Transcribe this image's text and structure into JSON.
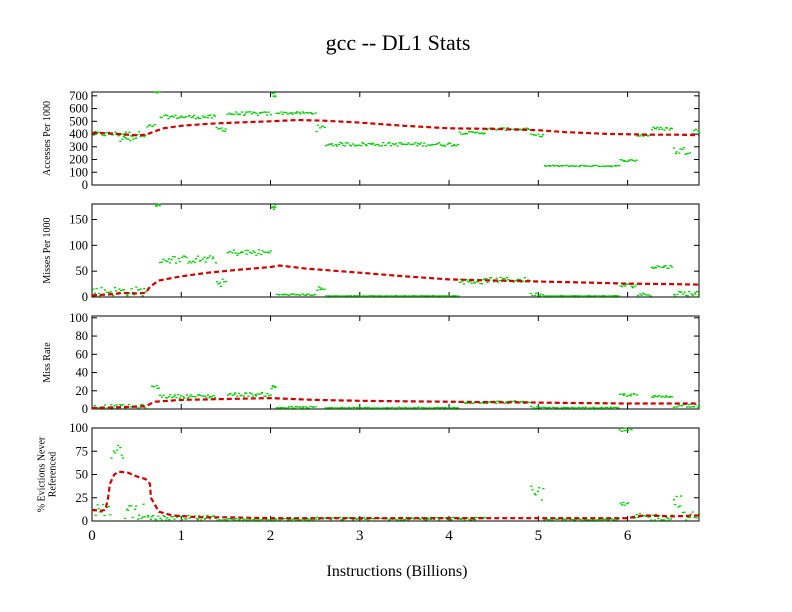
{
  "chart_data": {
    "title": "gcc -- DL1  Stats",
    "xlabel": "Instructions (Billions)",
    "xlim": [
      0,
      6.8
    ],
    "xticks": [
      "0",
      "1",
      "2",
      "3",
      "4",
      "5",
      "6"
    ],
    "colors": {
      "sample": "#00cc00",
      "average": "#cc0000"
    },
    "panels": [
      {
        "type": "line",
        "ylabel": [
          "Accesses Per 1000"
        ],
        "ylim": [
          0,
          730
        ],
        "yticks": [
          "0",
          "100",
          "200",
          "300",
          "400",
          "500",
          "600",
          "700"
        ],
        "average": [
          [
            0,
            410
          ],
          [
            0.2,
            405
          ],
          [
            0.3,
            400
          ],
          [
            0.5,
            390
          ],
          [
            0.6,
            395
          ],
          [
            0.7,
            420
          ],
          [
            0.8,
            445
          ],
          [
            1.0,
            465
          ],
          [
            1.3,
            480
          ],
          [
            1.6,
            490
          ],
          [
            2.0,
            500
          ],
          [
            2.3,
            510
          ],
          [
            2.6,
            505
          ],
          [
            3.0,
            490
          ],
          [
            3.5,
            465
          ],
          [
            4.0,
            445
          ],
          [
            4.5,
            440
          ],
          [
            5.0,
            430
          ],
          [
            5.3,
            415
          ],
          [
            5.8,
            400
          ],
          [
            6.3,
            395
          ],
          [
            6.6,
            395
          ],
          [
            6.8,
            390
          ]
        ],
        "samples": [
          {
            "x": [
              0,
              0.6
            ],
            "y": [
              380,
              420
            ]
          },
          {
            "x": [
              0.3,
              0.5
            ],
            "y": [
              330,
              390
            ]
          },
          {
            "x": [
              0.6,
              0.7
            ],
            "y": [
              440,
              480
            ]
          },
          {
            "x": [
              0.7,
              0.75
            ],
            "y": [
              720,
              735
            ]
          },
          {
            "x": [
              0.75,
              1.38
            ],
            "y": [
              520,
              550
            ]
          },
          {
            "x": [
              1.38,
              1.5
            ],
            "y": [
              420,
              460
            ]
          },
          {
            "x": [
              1.5,
              2.0
            ],
            "y": [
              545,
              575
            ]
          },
          {
            "x": [
              2.0,
              2.05
            ],
            "y": [
              690,
              730
            ]
          },
          {
            "x": [
              2.05,
              2.5
            ],
            "y": [
              555,
              575
            ]
          },
          {
            "x": [
              2.5,
              2.6
            ],
            "y": [
              420,
              470
            ]
          },
          {
            "x": [
              2.6,
              4.1
            ],
            "y": [
              305,
              335
            ]
          },
          {
            "x": [
              4.1,
              4.4
            ],
            "y": [
              400,
              420
            ]
          },
          {
            "x": [
              4.4,
              4.9
            ],
            "y": [
              430,
              450
            ]
          },
          {
            "x": [
              4.9,
              5.05
            ],
            "y": [
              380,
              400
            ]
          },
          {
            "x": [
              5.05,
              5.9
            ],
            "y": [
              145,
              155
            ]
          },
          {
            "x": [
              5.9,
              6.1
            ],
            "y": [
              185,
              200
            ]
          },
          {
            "x": [
              6.1,
              6.25
            ],
            "y": [
              380,
              400
            ]
          },
          {
            "x": [
              6.25,
              6.5
            ],
            "y": [
              430,
              455
            ]
          },
          {
            "x": [
              6.5,
              6.7
            ],
            "y": [
              240,
              300
            ]
          },
          {
            "x": [
              6.7,
              6.8
            ],
            "y": [
              400,
              450
            ]
          }
        ]
      },
      {
        "type": "line",
        "ylabel": [
          "Misses Per 1000"
        ],
        "ylim": [
          0,
          180
        ],
        "yticks": [
          "0",
          "50",
          "100",
          "150"
        ],
        "average": [
          [
            0,
            3
          ],
          [
            0.2,
            5
          ],
          [
            0.35,
            8
          ],
          [
            0.5,
            7
          ],
          [
            0.6,
            8
          ],
          [
            0.65,
            20
          ],
          [
            0.75,
            32
          ],
          [
            1.0,
            40
          ],
          [
            1.3,
            47
          ],
          [
            1.6,
            52
          ],
          [
            2.0,
            58
          ],
          [
            2.1,
            61
          ],
          [
            2.4,
            55
          ],
          [
            3.0,
            47
          ],
          [
            3.5,
            40
          ],
          [
            4.0,
            34
          ],
          [
            4.5,
            32
          ],
          [
            5.0,
            30
          ],
          [
            5.5,
            28
          ],
          [
            6.0,
            26
          ],
          [
            6.5,
            25
          ],
          [
            6.8,
            24
          ]
        ],
        "samples": [
          {
            "x": [
              0,
              0.6
            ],
            "y": [
              2,
              20
            ]
          },
          {
            "x": [
              0.7,
              0.75
            ],
            "y": [
              175,
              180
            ]
          },
          {
            "x": [
              0.75,
              1.38
            ],
            "y": [
              65,
              80
            ]
          },
          {
            "x": [
              1.38,
              1.5
            ],
            "y": [
              20,
              35
            ]
          },
          {
            "x": [
              1.5,
              2.0
            ],
            "y": [
              80,
              92
            ]
          },
          {
            "x": [
              2.0,
              2.05
            ],
            "y": [
              170,
              180
            ]
          },
          {
            "x": [
              2.05,
              2.5
            ],
            "y": [
              3,
              6
            ]
          },
          {
            "x": [
              2.5,
              2.6
            ],
            "y": [
              10,
              20
            ]
          },
          {
            "x": [
              2.6,
              4.1
            ],
            "y": [
              0,
              3
            ]
          },
          {
            "x": [
              4.1,
              4.4
            ],
            "y": [
              25,
              35
            ]
          },
          {
            "x": [
              4.4,
              4.9
            ],
            "y": [
              28,
              38
            ]
          },
          {
            "x": [
              4.9,
              5.05
            ],
            "y": [
              2,
              8
            ]
          },
          {
            "x": [
              5.05,
              5.9
            ],
            "y": [
              0,
              3
            ]
          },
          {
            "x": [
              5.9,
              6.1
            ],
            "y": [
              18,
              26
            ]
          },
          {
            "x": [
              6.1,
              6.25
            ],
            "y": [
              2,
              8
            ]
          },
          {
            "x": [
              6.25,
              6.5
            ],
            "y": [
              55,
              62
            ]
          },
          {
            "x": [
              6.5,
              6.8
            ],
            "y": [
              2,
              12
            ]
          }
        ]
      },
      {
        "type": "line",
        "ylabel": [
          "Miss Rate"
        ],
        "ylim": [
          0,
          102
        ],
        "yticks": [
          "0",
          "20",
          "40",
          "60",
          "80",
          "100"
        ],
        "average": [
          [
            0,
            1
          ],
          [
            0.3,
            2
          ],
          [
            0.6,
            3
          ],
          [
            0.7,
            8
          ],
          [
            1.0,
            10
          ],
          [
            1.5,
            11
          ],
          [
            2.0,
            12
          ],
          [
            2.5,
            10
          ],
          [
            3.0,
            9
          ],
          [
            3.5,
            8.5
          ],
          [
            4.0,
            8
          ],
          [
            4.5,
            7.5
          ],
          [
            5.0,
            7
          ],
          [
            5.5,
            6.5
          ],
          [
            6.0,
            6
          ],
          [
            6.8,
            6
          ]
        ],
        "samples": [
          {
            "x": [
              0,
              0.6
            ],
            "y": [
              0,
              5
            ]
          },
          {
            "x": [
              0.65,
              0.75
            ],
            "y": [
              22,
              26
            ]
          },
          {
            "x": [
              0.75,
              1.38
            ],
            "y": [
              12,
              16
            ]
          },
          {
            "x": [
              1.5,
              2.0
            ],
            "y": [
              14,
              18
            ]
          },
          {
            "x": [
              2.0,
              2.05
            ],
            "y": [
              22,
              26
            ]
          },
          {
            "x": [
              2.05,
              2.5
            ],
            "y": [
              0,
              3
            ]
          },
          {
            "x": [
              2.6,
              4.1
            ],
            "y": [
              0,
              2
            ]
          },
          {
            "x": [
              4.1,
              4.9
            ],
            "y": [
              6,
              9
            ]
          },
          {
            "x": [
              4.9,
              5.05
            ],
            "y": [
              0,
              3
            ]
          },
          {
            "x": [
              5.05,
              5.9
            ],
            "y": [
              0,
              2
            ]
          },
          {
            "x": [
              5.9,
              6.1
            ],
            "y": [
              14,
              17
            ]
          },
          {
            "x": [
              6.25,
              6.5
            ],
            "y": [
              12,
              15
            ]
          },
          {
            "x": [
              6.5,
              6.8
            ],
            "y": [
              2,
              6
            ]
          }
        ]
      },
      {
        "type": "line",
        "ylabel": [
          "% Evictions Never",
          "Referenced"
        ],
        "ylim": [
          0,
          100
        ],
        "yticks": [
          "0",
          "25",
          "50",
          "75",
          "100"
        ],
        "average": [
          [
            0,
            12
          ],
          [
            0.1,
            11
          ],
          [
            0.15,
            12
          ],
          [
            0.18,
            25
          ],
          [
            0.2,
            40
          ],
          [
            0.25,
            50
          ],
          [
            0.3,
            53
          ],
          [
            0.4,
            52
          ],
          [
            0.5,
            48
          ],
          [
            0.6,
            45
          ],
          [
            0.65,
            40
          ],
          [
            0.66,
            25
          ],
          [
            0.75,
            10
          ],
          [
            0.9,
            6
          ],
          [
            1.2,
            4
          ],
          [
            1.5,
            4
          ],
          [
            2.0,
            3
          ],
          [
            3.0,
            3
          ],
          [
            4.0,
            3
          ],
          [
            5.0,
            3
          ],
          [
            5.5,
            3
          ],
          [
            6.0,
            3
          ],
          [
            6.1,
            5
          ],
          [
            6.2,
            6
          ],
          [
            6.5,
            5
          ],
          [
            6.8,
            6
          ]
        ],
        "samples": [
          {
            "x": [
              0,
              0.2
            ],
            "y": [
              5,
              18
            ]
          },
          {
            "x": [
              0.2,
              0.35
            ],
            "y": [
              60,
              82
            ]
          },
          {
            "x": [
              0.35,
              0.6
            ],
            "y": [
              2,
              20
            ]
          },
          {
            "x": [
              0.6,
              1.38
            ],
            "y": [
              0,
              6
            ]
          },
          {
            "x": [
              1.38,
              2.5
            ],
            "y": [
              0,
              3
            ]
          },
          {
            "x": [
              2.5,
              4.4
            ],
            "y": [
              1,
              4
            ]
          },
          {
            "x": [
              4.9,
              5.05
            ],
            "y": [
              20,
              38
            ]
          },
          {
            "x": [
              5.05,
              5.9
            ],
            "y": [
              0,
              3
            ]
          },
          {
            "x": [
              5.9,
              6.05
            ],
            "y": [
              96,
              100
            ]
          },
          {
            "x": [
              5.9,
              6.0
            ],
            "y": [
              15,
              20
            ]
          },
          {
            "x": [
              6.05,
              6.5
            ],
            "y": [
              0,
              8
            ]
          },
          {
            "x": [
              6.5,
              6.6
            ],
            "y": [
              15,
              30
            ]
          },
          {
            "x": [
              6.6,
              6.8
            ],
            "y": [
              0,
              10
            ]
          }
        ]
      }
    ]
  }
}
